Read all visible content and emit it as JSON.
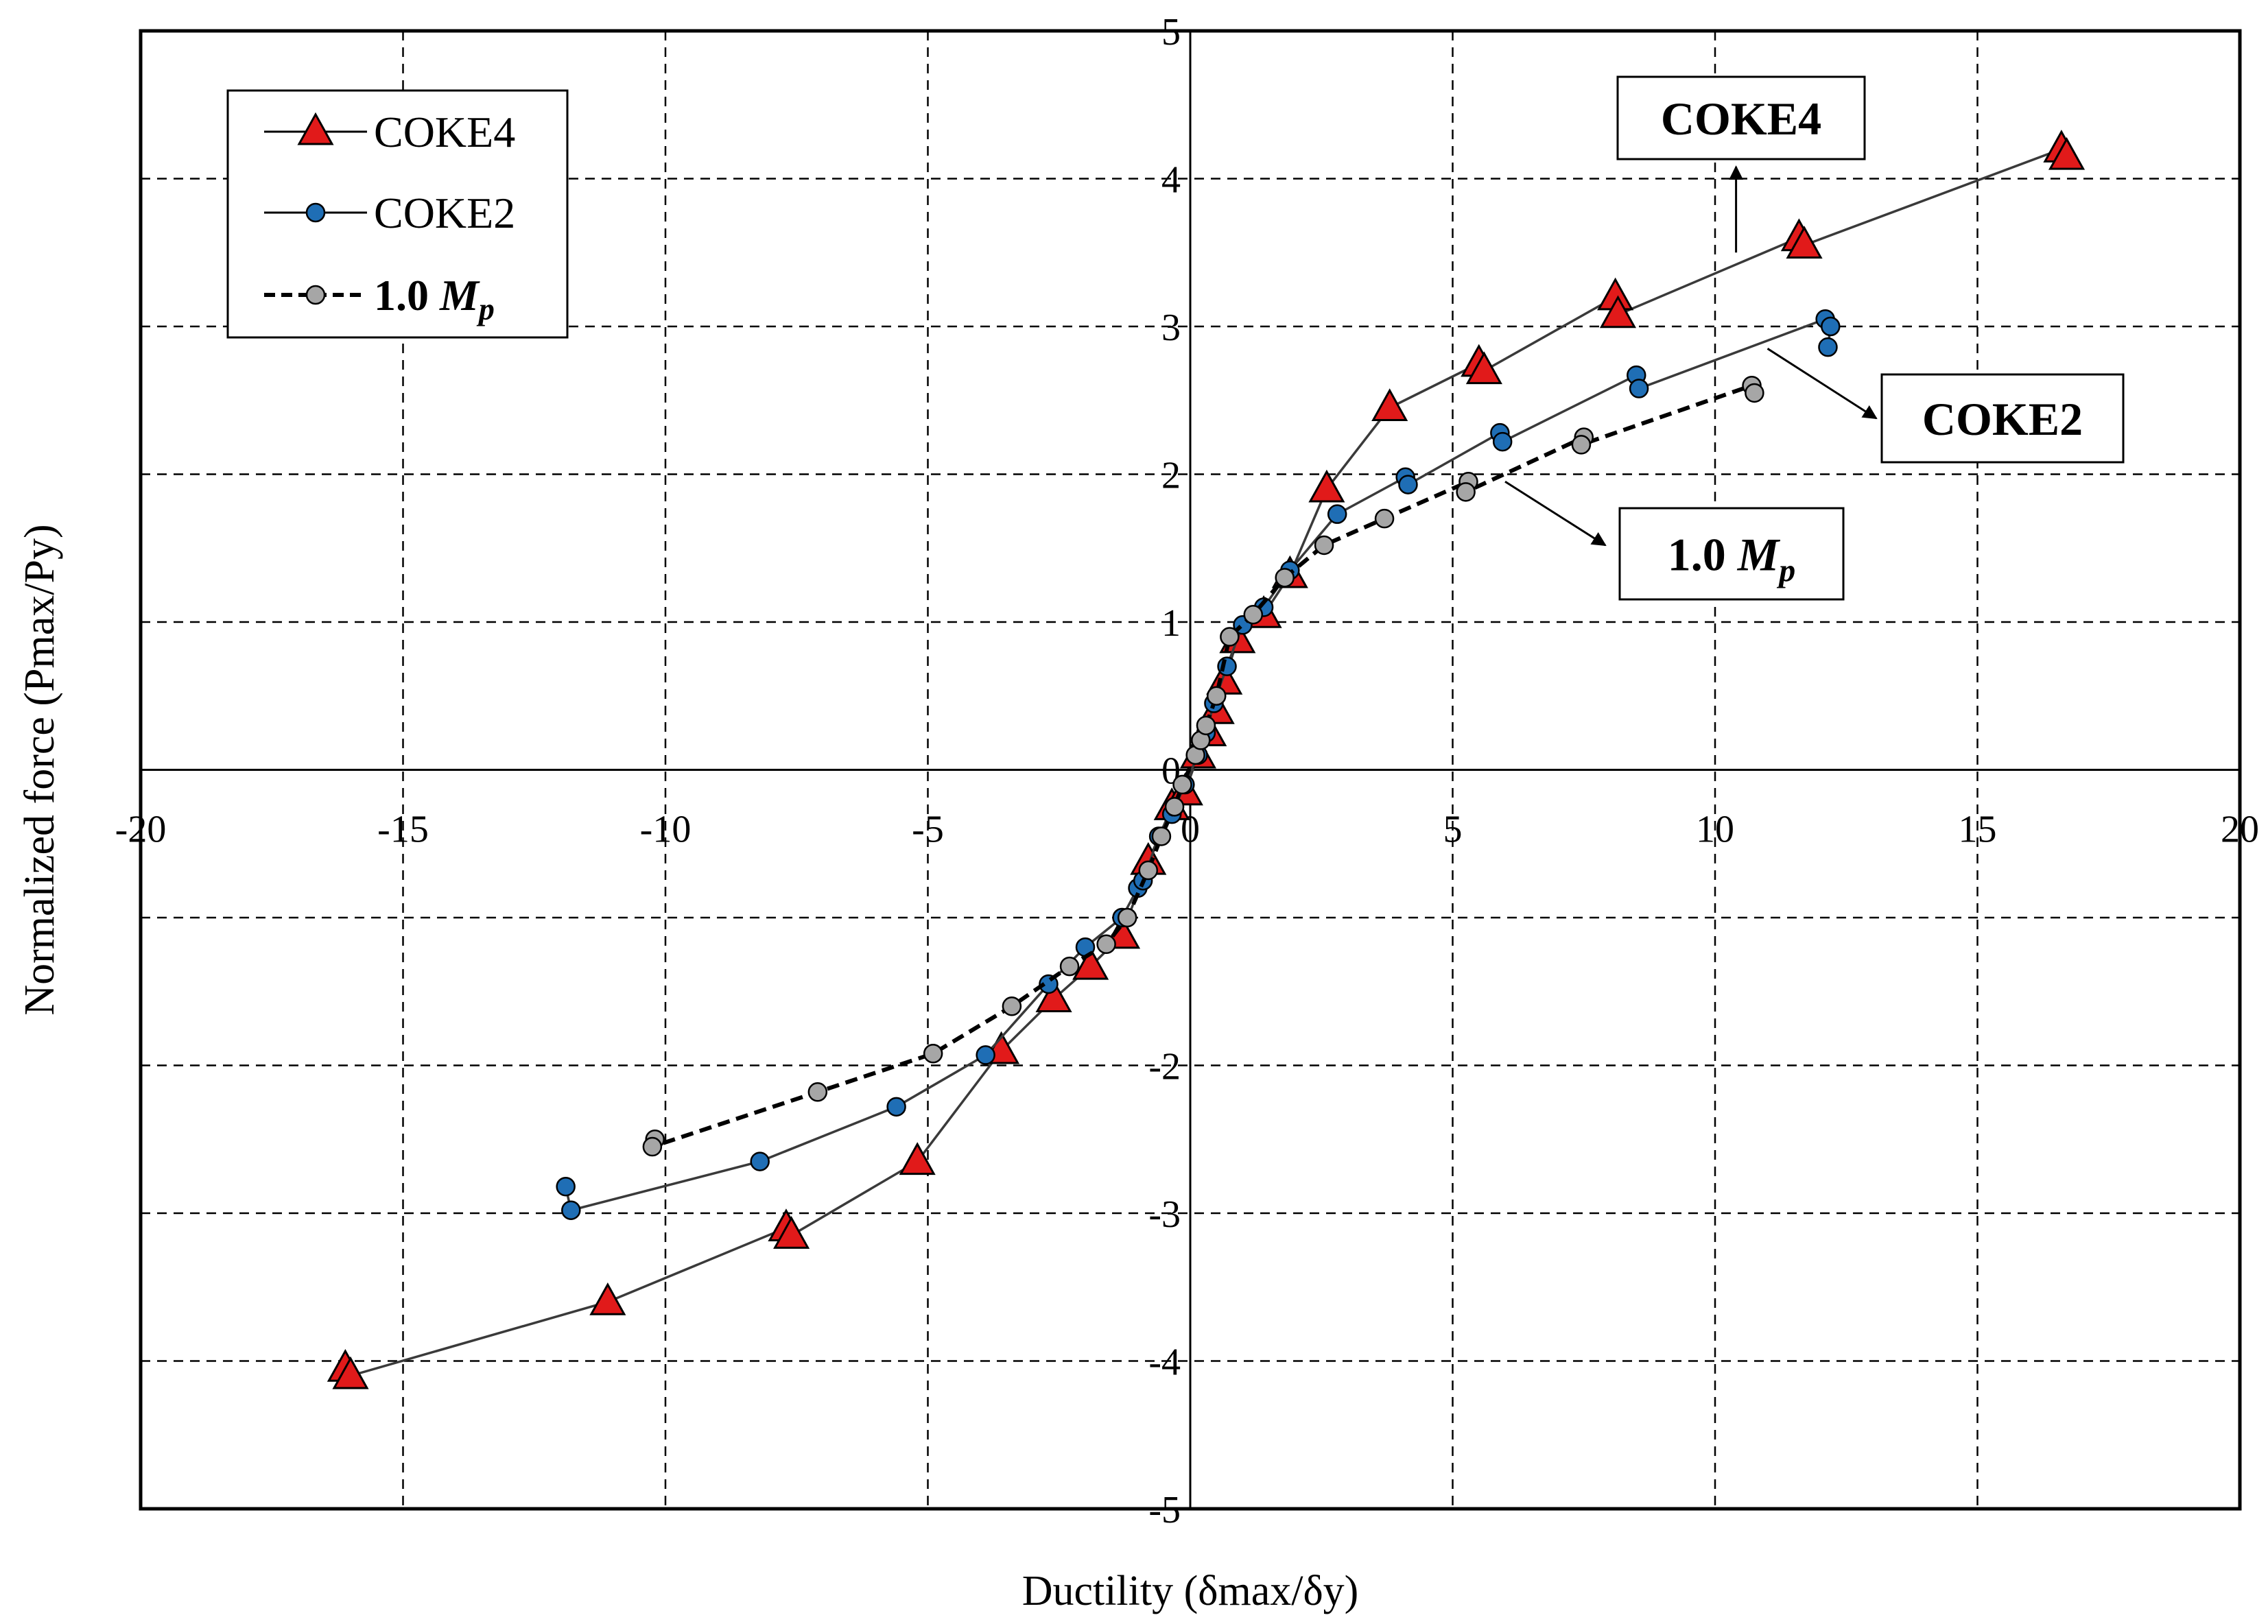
{
  "chart_data": {
    "type": "scatter",
    "title": "",
    "xlabel": "Ductility (δmax/δy)",
    "ylabel": "Normalized force (Pmax/Py)",
    "xlim": [
      -20,
      20
    ],
    "ylim": [
      -5,
      5
    ],
    "x_ticks": [
      -20,
      -15,
      -10,
      -5,
      0,
      5,
      10,
      15,
      20
    ],
    "y_ticks": [
      -5,
      -4,
      -3,
      -2,
      -1,
      0,
      1,
      2,
      3,
      4,
      5
    ],
    "x_tick_labels": [
      "-20",
      "-15",
      "-10",
      "-5",
      "0",
      "5",
      "10",
      "15",
      "20"
    ],
    "y_tick_labels": [
      "-5",
      "-4",
      "-3",
      "-2",
      "",
      "0",
      "1",
      "2",
      "3",
      "4",
      "5"
    ],
    "grid": true,
    "legend_position": "top-left",
    "series": [
      {
        "name": "COKE4",
        "line": "solid",
        "marker": "triangle",
        "color": "#e11a1a",
        "points": [
          [
            -16.1,
            -4.05
          ],
          [
            -16.0,
            -4.1
          ],
          [
            -11.1,
            -3.6
          ],
          [
            -7.7,
            -3.1
          ],
          [
            -7.6,
            -3.15
          ],
          [
            -5.2,
            -2.65
          ],
          [
            -3.6,
            -1.9
          ],
          [
            -2.6,
            -1.55
          ],
          [
            -1.9,
            -1.33
          ],
          [
            -1.3,
            -1.12
          ],
          [
            -0.8,
            -0.62
          ],
          [
            -0.35,
            -0.25
          ],
          [
            -0.1,
            -0.15
          ],
          [
            0.15,
            0.1
          ],
          [
            0.35,
            0.25
          ],
          [
            0.5,
            0.4
          ],
          [
            0.65,
            0.6
          ],
          [
            0.9,
            0.88
          ],
          [
            1.4,
            1.05
          ],
          [
            1.9,
            1.32
          ],
          [
            2.6,
            1.9
          ],
          [
            3.8,
            2.45
          ],
          [
            5.5,
            2.75
          ],
          [
            5.6,
            2.7
          ],
          [
            8.1,
            3.2
          ],
          [
            8.15,
            3.08
          ],
          [
            11.6,
            3.6
          ],
          [
            11.7,
            3.55
          ],
          [
            16.6,
            4.2
          ],
          [
            16.7,
            4.15
          ]
        ]
      },
      {
        "name": "COKE2",
        "line": "solid",
        "marker": "circle",
        "color": "#1f6eb5",
        "points": [
          [
            -11.9,
            -2.82
          ],
          [
            -11.8,
            -2.98
          ],
          [
            -8.2,
            -2.65
          ],
          [
            -5.6,
            -2.28
          ],
          [
            -3.9,
            -1.93
          ],
          [
            -2.7,
            -1.45
          ],
          [
            -2.0,
            -1.2
          ],
          [
            -1.3,
            -1.0
          ],
          [
            -1.0,
            -0.8
          ],
          [
            -0.9,
            -0.75
          ],
          [
            -0.6,
            -0.45
          ],
          [
            -0.35,
            -0.3
          ],
          [
            -0.1,
            -0.1
          ],
          [
            0.15,
            0.1
          ],
          [
            0.3,
            0.25
          ],
          [
            0.45,
            0.45
          ],
          [
            0.7,
            0.7
          ],
          [
            1.0,
            0.98
          ],
          [
            1.4,
            1.1
          ],
          [
            1.9,
            1.35
          ],
          [
            2.8,
            1.73
          ],
          [
            4.1,
            1.98
          ],
          [
            4.15,
            1.93
          ],
          [
            5.9,
            2.28
          ],
          [
            5.95,
            2.22
          ],
          [
            8.5,
            2.67
          ],
          [
            8.55,
            2.58
          ],
          [
            12.1,
            3.05
          ],
          [
            12.2,
            3.0
          ],
          [
            12.15,
            2.86
          ]
        ]
      },
      {
        "name": "1.0 Mp",
        "line": "dashed",
        "marker": "circle",
        "color": "#a6a6a6",
        "points": [
          [
            -10.2,
            -2.5
          ],
          [
            -10.25,
            -2.55
          ],
          [
            -7.1,
            -2.18
          ],
          [
            -4.9,
            -1.92
          ],
          [
            -3.4,
            -1.6
          ],
          [
            -2.3,
            -1.33
          ],
          [
            -1.6,
            -1.18
          ],
          [
            -1.2,
            -1.0
          ],
          [
            -0.8,
            -0.68
          ],
          [
            -0.55,
            -0.45
          ],
          [
            -0.3,
            -0.25
          ],
          [
            -0.15,
            -0.1
          ],
          [
            0.1,
            0.1
          ],
          [
            0.2,
            0.2
          ],
          [
            0.3,
            0.3
          ],
          [
            0.5,
            0.5
          ],
          [
            0.75,
            0.9
          ],
          [
            1.2,
            1.05
          ],
          [
            1.8,
            1.3
          ],
          [
            2.55,
            1.52
          ],
          [
            3.7,
            1.7
          ],
          [
            5.3,
            1.95
          ],
          [
            5.25,
            1.88
          ],
          [
            7.5,
            2.25
          ],
          [
            7.45,
            2.2
          ],
          [
            10.7,
            2.6
          ],
          [
            10.75,
            2.55
          ]
        ]
      }
    ],
    "legend": [
      {
        "label": "COKE4",
        "prefix": "",
        "italic": "",
        "sub": ""
      },
      {
        "label": "COKE2",
        "prefix": "",
        "italic": "",
        "sub": ""
      },
      {
        "label": "1.0 Mp",
        "prefix": "1.0 ",
        "italic": "M",
        "sub": "p"
      }
    ],
    "annotations": [
      {
        "label": "COKE4",
        "prefix": "COKE4",
        "italic": "",
        "sub": ""
      },
      {
        "label": "COKE2",
        "prefix": "COKE2",
        "italic": "",
        "sub": ""
      },
      {
        "label": "1.0 Mp",
        "prefix": "1.0 ",
        "italic": "M",
        "sub": "p"
      }
    ]
  }
}
